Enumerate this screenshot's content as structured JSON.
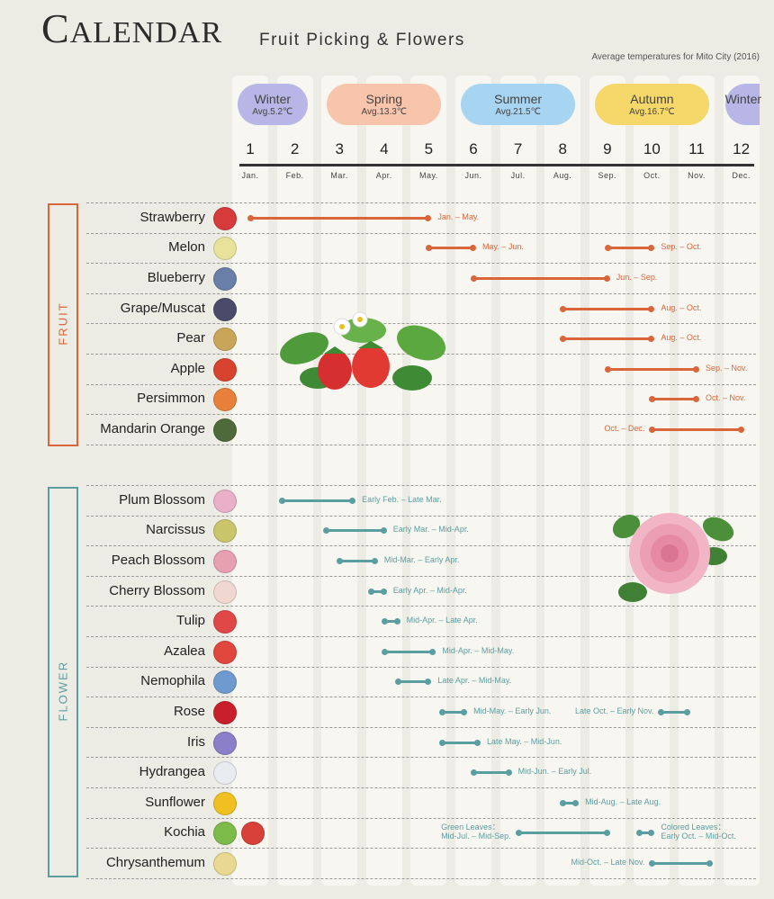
{
  "header": {
    "title": "Calendar",
    "subtitle": "Fruit Picking & Flowers",
    "note": "Average temperatures for Mito City (2016)"
  },
  "seasons": [
    {
      "name": "Winter",
      "avg": "Avg.5.2℃",
      "color": "#b7b6e6",
      "start": 1,
      "end": 2
    },
    {
      "name": "Spring",
      "avg": "Avg.13.3℃",
      "color": "#f8c4ab",
      "start": 3,
      "end": 5
    },
    {
      "name": "Summer",
      "avg": "Avg.21.5℃",
      "color": "#a7d4f0",
      "start": 6,
      "end": 8
    },
    {
      "name": "Autumn",
      "avg": "Avg.16.7℃",
      "color": "#f6d76a",
      "start": 9,
      "end": 11
    },
    {
      "name": "Winter",
      "avg": "",
      "color": "#b7b6e6",
      "start": 12,
      "end": 12
    }
  ],
  "months": [
    {
      "num": "1",
      "abbr": "Jan."
    },
    {
      "num": "2",
      "abbr": "Feb."
    },
    {
      "num": "3",
      "abbr": "Mar."
    },
    {
      "num": "4",
      "abbr": "Apr."
    },
    {
      "num": "5",
      "abbr": "May."
    },
    {
      "num": "6",
      "abbr": "Jun."
    },
    {
      "num": "7",
      "abbr": "Jul."
    },
    {
      "num": "8",
      "abbr": "Aug."
    },
    {
      "num": "9",
      "abbr": "Sep."
    },
    {
      "num": "10",
      "abbr": "Oct."
    },
    {
      "num": "11",
      "abbr": "Nov."
    },
    {
      "num": "12",
      "abbr": "Dec."
    }
  ],
  "categories": {
    "fruit": {
      "label": "FRUIT",
      "color": "#d9663a"
    },
    "flower": {
      "label": "FLOWER",
      "color": "#5b9ea1"
    }
  },
  "fruit": [
    {
      "name": "Strawberry",
      "icon": "strawberry-icon",
      "icon_color": "#d63a3a",
      "periods": [
        {
          "start": 1,
          "end": 5,
          "label": "Jan. – May.",
          "label_side": "right"
        }
      ]
    },
    {
      "name": "Melon",
      "icon": "melon-icon",
      "icon_color": "#e8e29a",
      "periods": [
        {
          "start": 5,
          "end": 6,
          "label": "May. – Jun.",
          "label_side": "right"
        },
        {
          "start": 9,
          "end": 10,
          "label": "Sep. – Oct.",
          "label_side": "right"
        }
      ]
    },
    {
      "name": "Blueberry",
      "icon": "blueberry-icon",
      "icon_color": "#6a7fa8",
      "periods": [
        {
          "start": 6,
          "end": 9,
          "label": "Jun. – Sep.",
          "label_side": "right"
        }
      ]
    },
    {
      "name": "Grape/Muscat",
      "icon": "grape-icon",
      "icon_color": "#4a4a6a",
      "periods": [
        {
          "start": 8,
          "end": 10,
          "label": "Aug. – Oct.",
          "label_side": "right"
        }
      ]
    },
    {
      "name": "Pear",
      "icon": "pear-icon",
      "icon_color": "#c9a55a",
      "periods": [
        {
          "start": 8,
          "end": 10,
          "label": "Aug. – Oct.",
          "label_side": "right"
        }
      ]
    },
    {
      "name": "Apple",
      "icon": "apple-icon",
      "icon_color": "#d8432f",
      "periods": [
        {
          "start": 9,
          "end": 11,
          "label": "Sep. – Nov.",
          "label_side": "right"
        }
      ]
    },
    {
      "name": "Persimmon",
      "icon": "persimmon-icon",
      "icon_color": "#e8803a",
      "periods": [
        {
          "start": 10,
          "end": 11,
          "label": "Oct. – Nov.",
          "label_side": "right"
        }
      ]
    },
    {
      "name": "Mandarin Orange",
      "icon": "mandarin-orange-icon",
      "icon_color": "#4f6a3a",
      "periods": [
        {
          "start": 10,
          "end": 12,
          "label": "Oct. – Dec.",
          "label_side": "left"
        }
      ]
    }
  ],
  "flowers": [
    {
      "name": "Plum Blossom",
      "icon": "plum-blossom-icon",
      "icon_color": "#e9b0c8",
      "periods": [
        {
          "start": 1.7,
          "end": 3.3,
          "label": "Early Feb. – Late Mar.",
          "label_side": "right"
        }
      ]
    },
    {
      "name": "Narcissus",
      "icon": "narcissus-icon",
      "icon_color": "#c8c56a",
      "periods": [
        {
          "start": 2.7,
          "end": 4.0,
          "label": "Early Mar. – Mid-Apr.",
          "label_side": "right"
        }
      ]
    },
    {
      "name": "Peach Blossom",
      "icon": "peach-blossom-icon",
      "icon_color": "#e6a0b0",
      "periods": [
        {
          "start": 3.0,
          "end": 3.8,
          "label": "Mid-Mar. – Early Apr.",
          "label_side": "right"
        }
      ]
    },
    {
      "name": "Cherry Blossom",
      "icon": "cherry-blossom-icon",
      "icon_color": "#f0d8d0",
      "periods": [
        {
          "start": 3.7,
          "end": 4.0,
          "label": "Early Apr. – Mid-Apr.",
          "label_side": "right"
        }
      ]
    },
    {
      "name": "Tulip",
      "icon": "tulip-icon",
      "icon_color": "#e04848",
      "periods": [
        {
          "start": 4.0,
          "end": 4.3,
          "label": "Mid-Apr. – Late Apr.",
          "label_side": "right"
        }
      ]
    },
    {
      "name": "Azalea",
      "icon": "azalea-icon",
      "icon_color": "#e0463c",
      "periods": [
        {
          "start": 4.0,
          "end": 5.1,
          "label": "Mid-Apr. – Mid-May.",
          "label_side": "right"
        }
      ]
    },
    {
      "name": "Nemophila",
      "icon": "nemophila-icon",
      "icon_color": "#6f9ad0",
      "periods": [
        {
          "start": 4.3,
          "end": 5.0,
          "label": "Late Apr. – Mid-May.",
          "label_side": "right"
        }
      ]
    },
    {
      "name": "Rose",
      "icon": "rose-icon",
      "icon_color": "#c8202a",
      "periods": [
        {
          "start": 5.3,
          "end": 5.8,
          "label": "Mid-May. – Early Jun.",
          "label_side": "right"
        },
        {
          "start": 10.2,
          "end": 10.8,
          "label": "Late Oct. – Early Nov.",
          "label_side": "left"
        }
      ]
    },
    {
      "name": "Iris",
      "icon": "iris-icon",
      "icon_color": "#8a7fc8",
      "periods": [
        {
          "start": 5.3,
          "end": 6.1,
          "label": "Late May. – Mid-Jun.",
          "label_side": "right"
        }
      ]
    },
    {
      "name": "Hydrangea",
      "icon": "hydrangea-icon",
      "icon_color": "#e8ecf0",
      "periods": [
        {
          "start": 6.0,
          "end": 6.8,
          "label": "Mid-Jun. – Early Jul.",
          "label_side": "right"
        }
      ]
    },
    {
      "name": "Sunflower",
      "icon": "sunflower-icon",
      "icon_color": "#f0c020",
      "periods": [
        {
          "start": 8.0,
          "end": 8.3,
          "label": "Mid-Aug. – Late Aug.",
          "label_side": "right"
        }
      ]
    },
    {
      "name": "Kochia",
      "icon": "kochia-icon",
      "icon_color": "#7cba4a",
      "icon2_color": "#d8403a",
      "periods": [
        {
          "start": 7.0,
          "end": 9.0,
          "label": "Green Leaves：\nMid-Jul. – Mid-Sep.",
          "label_side": "left"
        },
        {
          "start": 9.7,
          "end": 10.0,
          "label": "Colored Leaves：\nEarly Oct. – Mid-Oct.",
          "label_side": "right"
        }
      ]
    },
    {
      "name": "Chrysanthemum",
      "icon": "chrysanthemum-icon",
      "icon_color": "#e8d890",
      "periods": [
        {
          "start": 10.0,
          "end": 11.3,
          "label": "Mid-Oct. – Late Nov.",
          "label_side": "left"
        }
      ]
    }
  ]
}
